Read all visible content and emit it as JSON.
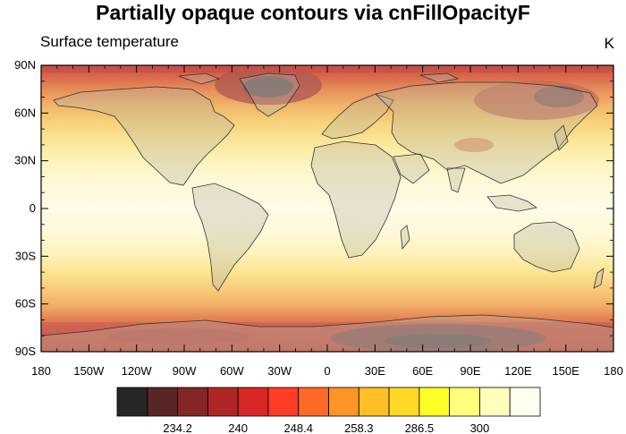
{
  "title": "Partially opaque contours via cnFillOpacityF",
  "left_string": "Surface temperature",
  "right_string": "K",
  "lat_labels": [
    "90N",
    "60N",
    "30N",
    "0",
    "30S",
    "60S",
    "90S"
  ],
  "lon_labels": [
    "180",
    "150W",
    "120W",
    "90W",
    "60W",
    "30W",
    "0",
    "30E",
    "60E",
    "90E",
    "120E",
    "150E",
    "180"
  ],
  "colorbar": {
    "colors": [
      "#000000",
      "#3c0000",
      "#6e0000",
      "#a00000",
      "#d20000",
      "#ff1a00",
      "#ff5000",
      "#ff8200",
      "#ffb400",
      "#ffd200",
      "#ffff00",
      "#ffff64",
      "#ffffaf",
      "#fffff0"
    ],
    "labels": [
      "234.2",
      "240",
      "248.4",
      "258.3",
      "286.5",
      "300"
    ]
  },
  "fill_opacity": 0.5
}
